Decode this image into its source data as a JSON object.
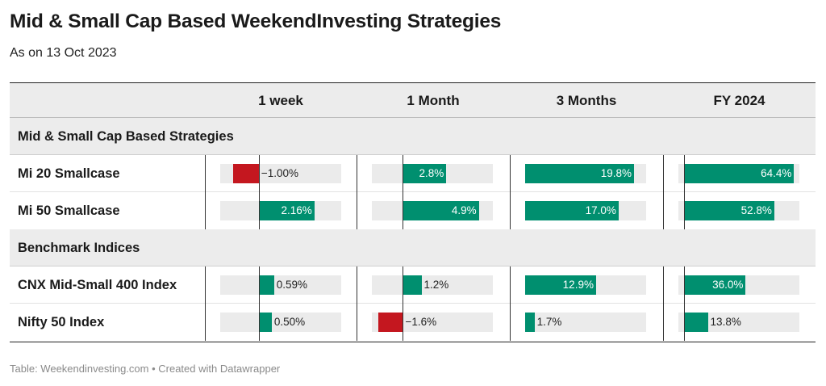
{
  "title": "Mid & Small Cap Based WeekendInvesting Strategies",
  "subtitle": "As on 13 Oct 2023",
  "footer": "Table: Weekendinvesting.com • Created with Datawrapper",
  "colors": {
    "positive": "#008f6f",
    "negative": "#c4171f",
    "track": "#ebebeb",
    "header_bg": "#ececec"
  },
  "chart_data": {
    "type": "table",
    "columns": [
      "",
      "1 week",
      "1 Month",
      "3 Months",
      "FY 2024"
    ],
    "units": "%",
    "groups": [
      {
        "label": "Mid & Small Cap Based Strategies",
        "rows": [
          {
            "name": "Mi 20 Smallcase",
            "values": [
              -1.0,
              2.8,
              19.8,
              64.4
            ],
            "labels": [
              "−1.00%",
              "2.8%",
              "19.8%",
              "64.4%"
            ]
          },
          {
            "name": "Mi 50 Smallcase",
            "values": [
              2.16,
              4.9,
              17.0,
              52.8
            ],
            "labels": [
              "2.16%",
              "4.9%",
              "17.0%",
              "52.8%"
            ]
          }
        ]
      },
      {
        "label": "Benchmark Indices",
        "rows": [
          {
            "name": "CNX Mid-Small 400 Index",
            "values": [
              0.59,
              1.2,
              12.9,
              36.0
            ],
            "labels": [
              "0.59%",
              "1.2%",
              "12.9%",
              "36.0%"
            ]
          },
          {
            "name": "Nifty 50 Index",
            "values": [
              0.5,
              -1.6,
              1.7,
              13.8
            ],
            "labels": [
              "0.50%",
              "−1.6%",
              "1.7%",
              "13.8%"
            ]
          }
        ]
      }
    ],
    "column_scales": [
      {
        "min": -1.5,
        "max": 3.2
      },
      {
        "min": -2.0,
        "max": 5.8
      },
      {
        "min": 0,
        "max": 22.0
      },
      {
        "min": -3.5,
        "max": 67.5
      }
    ]
  }
}
